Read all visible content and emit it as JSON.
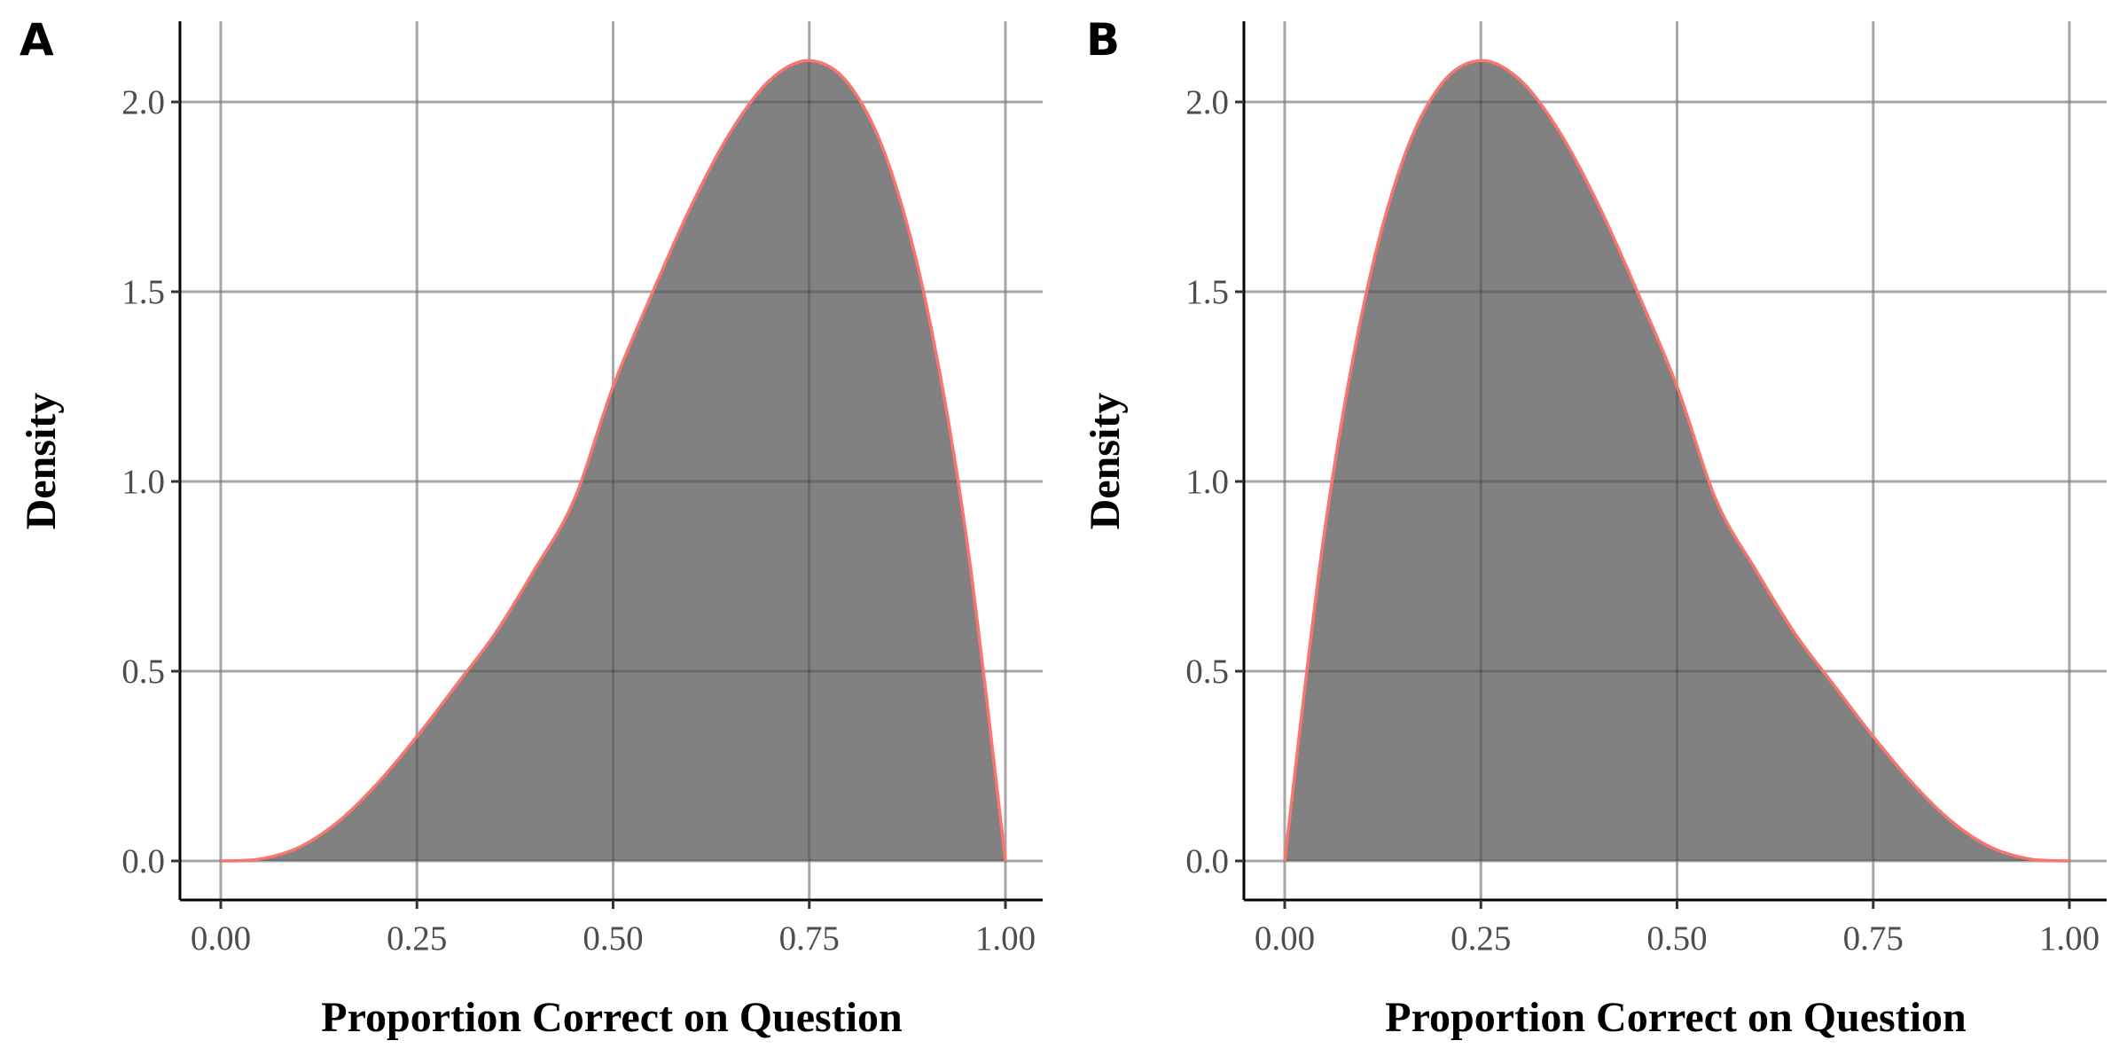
{
  "colors": {
    "area_fill": "#7f7f7f",
    "curve_stroke": "#f8766d",
    "grid": "#cccccc",
    "axis": "#000000"
  },
  "chart_data": [
    {
      "type": "area",
      "panel_label": "A",
      "title": "",
      "xlabel": "Proportion Correct on Question",
      "ylabel": "Density",
      "xlim": [
        0,
        1
      ],
      "ylim": [
        0,
        2.1
      ],
      "x_ticks": [
        "0.00",
        "0.25",
        "0.50",
        "0.75",
        "1.00"
      ],
      "y_ticks": [
        "0.0",
        "0.5",
        "1.0",
        "1.5",
        "2.0"
      ],
      "grid": true,
      "x": [
        0.0,
        0.05,
        0.1,
        0.15,
        0.2,
        0.25,
        0.3,
        0.35,
        0.4,
        0.45,
        0.5,
        0.55,
        0.6,
        0.65,
        0.7,
        0.75,
        0.8,
        0.85,
        0.9,
        0.95,
        1.0
      ],
      "y": [
        0.0,
        0.005,
        0.036,
        0.104,
        0.205,
        0.328,
        0.463,
        0.6,
        0.768,
        0.95,
        1.25,
        1.497,
        1.728,
        1.922,
        2.058,
        2.109,
        2.048,
        1.843,
        1.458,
        0.857,
        0.0
      ]
    },
    {
      "type": "area",
      "panel_label": "B",
      "title": "",
      "xlabel": "Proportion Correct on Question",
      "ylabel": "Density",
      "xlim": [
        0,
        1
      ],
      "ylim": [
        0,
        2.1
      ],
      "x_ticks": [
        "0.00",
        "0.25",
        "0.50",
        "0.75",
        "1.00"
      ],
      "y_ticks": [
        "0.0",
        "0.5",
        "1.0",
        "1.5",
        "2.0"
      ],
      "grid": true,
      "x": [
        0.0,
        0.05,
        0.1,
        0.15,
        0.2,
        0.25,
        0.3,
        0.35,
        0.4,
        0.45,
        0.5,
        0.55,
        0.6,
        0.65,
        0.7,
        0.75,
        0.8,
        0.85,
        0.9,
        0.95,
        1.0
      ],
      "y": [
        0.0,
        0.857,
        1.458,
        1.843,
        2.048,
        2.109,
        2.058,
        1.922,
        1.728,
        1.497,
        1.25,
        0.95,
        0.768,
        0.6,
        0.463,
        0.328,
        0.205,
        0.104,
        0.036,
        0.005,
        0.0
      ]
    }
  ]
}
